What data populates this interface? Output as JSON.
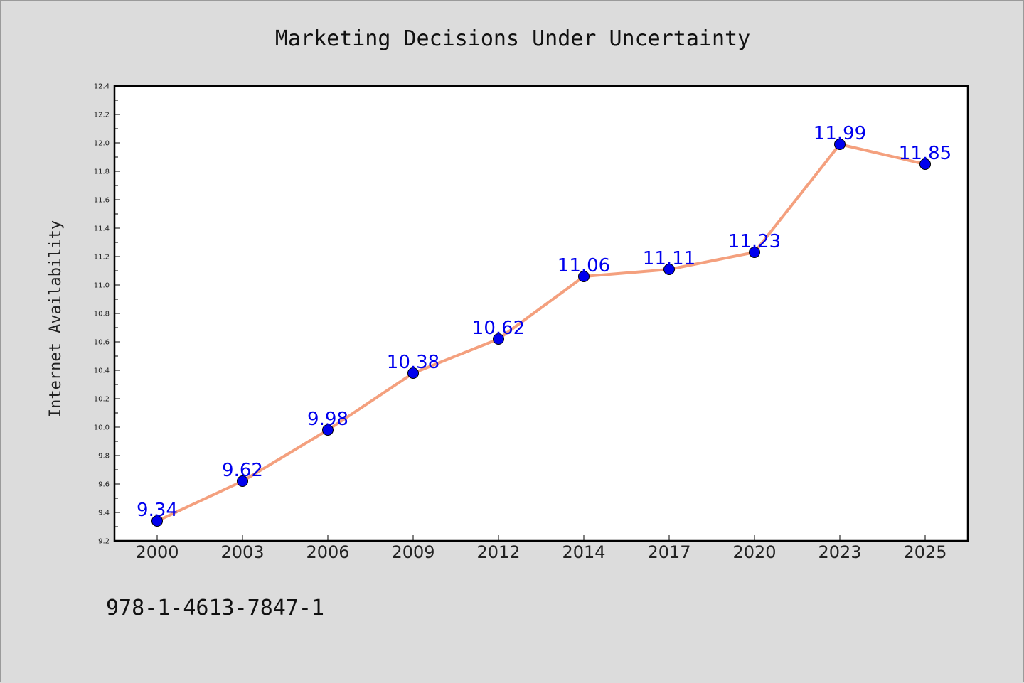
{
  "chart_data": {
    "type": "line",
    "title": "Marketing Decisions Under Uncertainty",
    "xlabel": "",
    "ylabel": "Internet Availability",
    "categories": [
      "2000",
      "2003",
      "2006",
      "2009",
      "2012",
      "2014",
      "2017",
      "2020",
      "2023",
      "2025"
    ],
    "series": [
      {
        "values": [
          9.34,
          9.62,
          9.98,
          10.38,
          10.62,
          11.06,
          11.11,
          11.23,
          11.99,
          11.85
        ],
        "labels": [
          "9.34",
          "9.62",
          "9.98",
          "10.38",
          "10.62",
          "11.06",
          "11.11",
          "11.23",
          "11.99",
          "11.85"
        ],
        "line_color": "#f4a07e",
        "marker_color": "#0000ee",
        "label_color": "#0000ee"
      }
    ],
    "ylim": [
      9.2,
      12.4
    ],
    "yticks": [
      "9.2",
      "9.4",
      "9.6",
      "9.8",
      "10.0",
      "10.2",
      "10.4",
      "10.6",
      "10.8",
      "11.0",
      "11.2",
      "11.4",
      "11.6",
      "11.8",
      "12.0",
      "12.2",
      "12.4"
    ],
    "grid": false,
    "legend": "none"
  },
  "footer": {
    "isbn": "978-1-4613-7847-1"
  },
  "colors": {
    "background": "#dcdcdc",
    "plot_background": "#ffffff",
    "axes": "#000000"
  }
}
